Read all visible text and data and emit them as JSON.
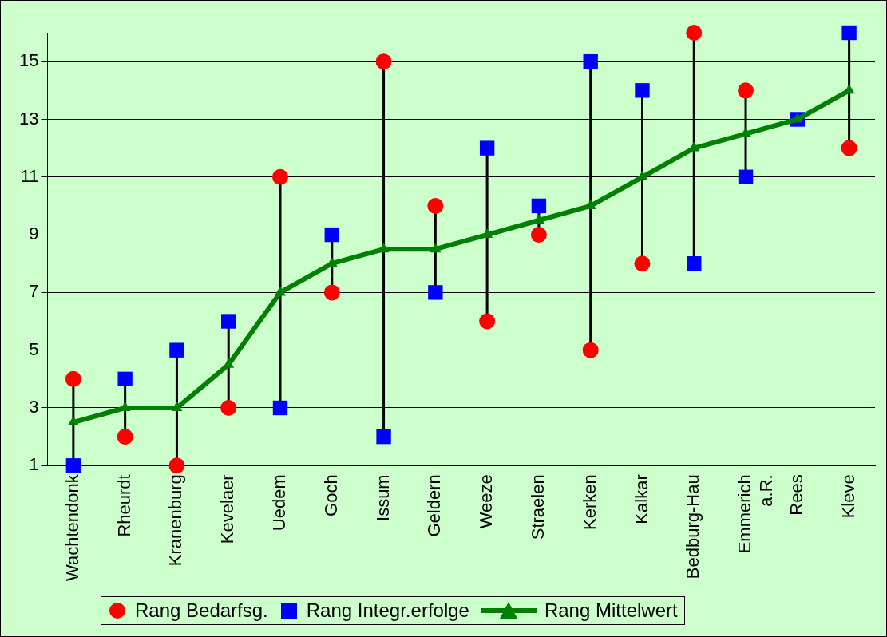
{
  "chart_data": {
    "type": "line",
    "categories": [
      "Wachtendonk",
      "Rheurdt",
      "Kranenburg",
      "Kevelaer",
      "Uedem",
      "Goch",
      "Issum",
      "Geldern",
      "Weeze",
      "Straelen",
      "Kerken",
      "Kalkar",
      "Bedburg-Hau",
      "Emmerich a.R.",
      "Rees",
      "Kleve"
    ],
    "series": [
      {
        "name": "Rang Bedarfsg.",
        "type": "scatter",
        "marker": "circle",
        "color": "#ff0000",
        "values": [
          4,
          2,
          1,
          3,
          11,
          7,
          15,
          10,
          6,
          9,
          5,
          8,
          16,
          14,
          null,
          12
        ]
      },
      {
        "name": "Rang Integr.erfolge",
        "type": "scatter",
        "marker": "square",
        "color": "#0000ff",
        "values": [
          1,
          4,
          5,
          6,
          3,
          9,
          2,
          7,
          12,
          10,
          15,
          14,
          8,
          11,
          13,
          16
        ]
      },
      {
        "name": "Rang Mittelwert",
        "type": "line",
        "marker": "triangle",
        "color": "#008000",
        "values": [
          2.5,
          3,
          3,
          4.5,
          7,
          8,
          8.5,
          8.5,
          9,
          9.5,
          10,
          11,
          12,
          12.5,
          13,
          14
        ]
      }
    ],
    "ylim": [
      1,
      16
    ],
    "yticks": [
      1,
      3,
      5,
      7,
      9,
      11,
      13,
      15
    ],
    "grid": "y",
    "legend": "bottom"
  }
}
